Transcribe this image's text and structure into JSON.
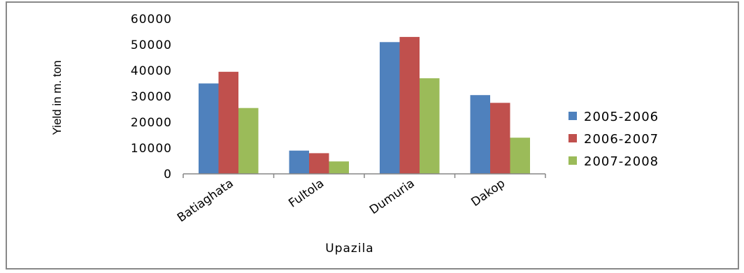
{
  "chart_data": {
    "type": "bar",
    "title": "",
    "xlabel": "Upazila",
    "ylabel": "Yield in m. ton",
    "ylim": [
      0,
      60000
    ],
    "yticks": [
      "0",
      "10000",
      "20000",
      "30000",
      "40000",
      "50000",
      "60000"
    ],
    "grid": false,
    "legend_position": "right",
    "categories": [
      "Batiaghata",
      "Fultola",
      "Dumuria",
      "Dakop"
    ],
    "series": [
      {
        "name": "2005-2006",
        "color": "#4f81bd",
        "values": [
          35000,
          9000,
          51000,
          30500
        ]
      },
      {
        "name": "2006-2007",
        "color": "#c0504d",
        "values": [
          39500,
          8000,
          53000,
          27500
        ]
      },
      {
        "name": "2007-2008",
        "color": "#9bbb59",
        "values": [
          25500,
          4800,
          37000,
          14000
        ]
      }
    ]
  }
}
